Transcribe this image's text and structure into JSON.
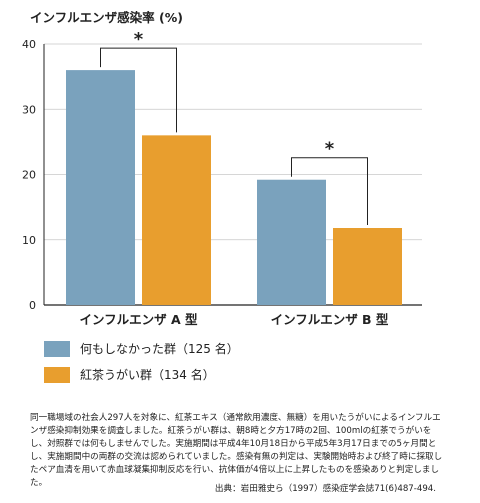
{
  "chart_data": {
    "type": "bar",
    "ylabel": "インフルエンザ感染率 (%)",
    "ylim": [
      0,
      40
    ],
    "yticks": [
      "0",
      "10",
      "20",
      "30",
      "40"
    ],
    "categories": [
      "インフルエンザ A 型",
      "インフルエンザ B 型"
    ],
    "series": [
      {
        "name": "何もしなかった群（125 名）",
        "color": "#7aa2bd",
        "values": [
          36,
          19.2
        ]
      },
      {
        "name": "紅茶うがい群（134 名）",
        "color": "#e89e2e",
        "values": [
          26,
          11.8
        ]
      }
    ],
    "annotations": [
      {
        "group": 0,
        "text": "*"
      },
      {
        "group": 1,
        "text": "*"
      }
    ]
  },
  "description": "同一職場域の社会人297人を対象に、紅茶エキス（通常飲用濃度、無糖）を用いたうがいによるインフルエンザ感染抑制効果を調査しました。紅茶うがい群は、朝8時と夕方17時の2回、100mlの紅茶でうがいをし、対照群では何もしませんでした。実施期間は平成4年10月18日から平成5年3月17日までの5ヶ月間とし、実施期間中の両群の交流は認められていました。感染有無の判定は、実験開始時および終了時に採取したペア血清を用いて赤血球凝集抑制反応を行い、抗体価が4倍以上に上昇したものを感染ありと判定しました。",
  "source": "出典：岩田雅史ら（1997）感染症学会誌71(6)487-494."
}
